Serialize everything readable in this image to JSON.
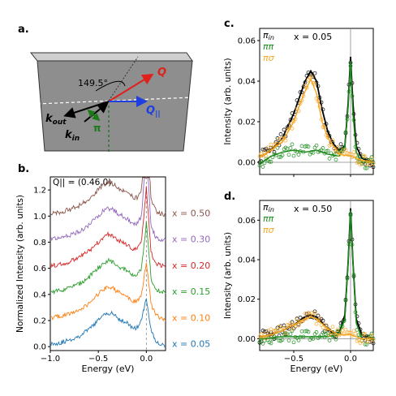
{
  "panels": {
    "a": {
      "label": "a.",
      "angle": "149.5°",
      "vec_Q": "Q",
      "vec_Qpar": "Q",
      "vec_Qpar_sub": "||",
      "vec_kout": "k",
      "vec_kout_sub": "out",
      "vec_kin": "k",
      "vec_kin_sub": "in",
      "pol": "π",
      "colors": {
        "slab_top": "#cfcfcf",
        "slab_face": "#8e8e8e",
        "Q": "#e0201b",
        "Qpar": "#1f3fe0",
        "k": "#000000",
        "pol": "#1a7a1a"
      }
    },
    "b": {
      "label": "b.",
      "annotation": "Q|| = (0.46,0)"
    },
    "c": {
      "label": "c.",
      "annotation": "x = 0.05"
    },
    "d": {
      "label": "d.",
      "annotation": "x = 0.50"
    },
    "legend": [
      {
        "label": "π_in",
        "main": "π",
        "sub": "in",
        "color": "#000000"
      },
      {
        "label": "ππ",
        "main": "ππ",
        "sub": "",
        "color": "#1a8a1a"
      },
      {
        "label": "πσ",
        "main": "πσ",
        "sub": "",
        "color": "#f5a623"
      }
    ]
  },
  "chart_data": [
    {
      "panel": "b",
      "type": "line",
      "xlabel": "Energy (eV)",
      "ylabel": "Normalized Intensity (arb. units)",
      "xlim": [
        -1.0,
        0.2
      ],
      "ylim": [
        -0.03,
        1.3
      ],
      "xticks": [
        -1.0,
        -0.5,
        0.0
      ],
      "xtick_labels": [
        "−1.0",
        "−0.5",
        "0.0"
      ],
      "yticks": [
        0.0,
        0.2,
        0.4,
        0.6,
        0.8,
        1.0,
        1.2
      ],
      "ytick_labels": [
        "0.0",
        "0.2",
        "0.4",
        "0.6",
        "0.8",
        "1.0",
        "1.2"
      ],
      "series": [
        {
          "name": "x = 0.05",
          "color": "#1f77b4",
          "offset": 0.0,
          "elastic_peak": 0.38
        },
        {
          "name": "x = 0.10",
          "color": "#ff7f0e",
          "offset": 0.2,
          "elastic_peak": 0.45
        },
        {
          "name": "x = 0.15",
          "color": "#2ca02c",
          "offset": 0.4,
          "elastic_peak": 0.55
        },
        {
          "name": "x = 0.20",
          "color": "#d62728",
          "offset": 0.6,
          "elastic_peak": 0.62
        },
        {
          "name": "x = 0.30",
          "color": "#9467bd",
          "offset": 0.8,
          "elastic_peak": 0.72
        },
        {
          "name": "x = 0.50",
          "color": "#8c564b",
          "offset": 1.0,
          "elastic_peak": 0.8
        }
      ],
      "shared_profile": {
        "x": [
          -1.0,
          -0.9,
          -0.8,
          -0.7,
          -0.6,
          -0.5,
          -0.45,
          -0.4,
          -0.35,
          -0.3,
          -0.25,
          -0.2,
          -0.15,
          -0.1,
          -0.05,
          0.0,
          0.05,
          0.1,
          0.15,
          0.2
        ],
        "y": [
          0.02,
          0.03,
          0.05,
          0.08,
          0.13,
          0.2,
          0.24,
          0.26,
          0.25,
          0.22,
          0.2,
          0.18,
          0.15,
          0.14,
          0.2,
          0.36,
          0.12,
          0.04,
          0.02,
          0.01
        ]
      }
    },
    {
      "panel": "c",
      "type": "scatter",
      "ylabel": "Intensity (arb. units)",
      "xlim": [
        -0.8,
        0.2
      ],
      "ylim": [
        -0.006,
        0.066
      ],
      "xticks": [
        -0.5,
        0.0
      ],
      "yticks": [
        0.0,
        0.02,
        0.04,
        0.06
      ],
      "ytick_labels": [
        "0.00",
        "0.02",
        "0.04",
        "0.06"
      ],
      "series": [
        {
          "name": "π_in",
          "x": [
            -0.78,
            -0.7,
            -0.6,
            -0.5,
            -0.45,
            -0.4,
            -0.35,
            -0.3,
            -0.25,
            -0.2,
            -0.15,
            -0.1,
            -0.05,
            -0.02,
            0.0,
            0.02,
            0.05,
            0.1,
            0.15,
            0.2
          ],
          "y": [
            0.003,
            0.006,
            0.012,
            0.024,
            0.032,
            0.04,
            0.045,
            0.04,
            0.026,
            0.015,
            0.009,
            0.006,
            0.008,
            0.03,
            0.052,
            0.03,
            0.008,
            0.002,
            0.001,
            0.0
          ]
        },
        {
          "name": "ππ",
          "x": [
            -0.78,
            -0.7,
            -0.6,
            -0.5,
            -0.4,
            -0.3,
            -0.2,
            -0.1,
            -0.05,
            -0.02,
            0.0,
            0.02,
            0.05,
            0.1,
            0.2
          ],
          "y": [
            0.0,
            0.003,
            0.005,
            0.006,
            0.005,
            0.006,
            0.004,
            0.003,
            0.008,
            0.028,
            0.05,
            0.025,
            0.005,
            0.0,
            0.0
          ]
        },
        {
          "name": "πσ",
          "x": [
            -0.78,
            -0.7,
            -0.6,
            -0.5,
            -0.45,
            -0.4,
            -0.35,
            -0.3,
            -0.25,
            -0.2,
            -0.1,
            0.0,
            0.1,
            0.2
          ],
          "y": [
            0.003,
            0.006,
            0.01,
            0.02,
            0.028,
            0.035,
            0.041,
            0.034,
            0.02,
            0.012,
            0.004,
            0.003,
            0.001,
            0.0
          ]
        }
      ]
    },
    {
      "panel": "d",
      "type": "scatter",
      "xlabel": "Energy (eV)",
      "ylabel": "Intensity (arb. units)",
      "xlim": [
        -0.8,
        0.2
      ],
      "ylim": [
        -0.006,
        0.07
      ],
      "xticks": [
        -0.5,
        0.0
      ],
      "xtick_labels": [
        "−0.5",
        "0.0"
      ],
      "yticks": [
        0.0,
        0.02,
        0.04,
        0.06
      ],
      "ytick_labels": [
        "0.00",
        "0.02",
        "0.04",
        "0.06"
      ],
      "series": [
        {
          "name": "π_in",
          "x": [
            -0.78,
            -0.7,
            -0.6,
            -0.5,
            -0.45,
            -0.4,
            -0.35,
            -0.3,
            -0.25,
            -0.2,
            -0.15,
            -0.1,
            -0.05,
            -0.02,
            0.0,
            0.02,
            0.05,
            0.1,
            0.15,
            0.2
          ],
          "y": [
            0.001,
            0.002,
            0.004,
            0.007,
            0.009,
            0.011,
            0.012,
            0.011,
            0.008,
            0.005,
            0.003,
            0.003,
            0.012,
            0.04,
            0.066,
            0.04,
            0.01,
            0.002,
            0.001,
            0.0
          ]
        },
        {
          "name": "ππ",
          "x": [
            -0.78,
            -0.6,
            -0.4,
            -0.2,
            -0.1,
            -0.05,
            -0.02,
            0.0,
            0.02,
            0.05,
            0.1,
            0.2
          ],
          "y": [
            0.0,
            0.001,
            0.001,
            0.001,
            0.002,
            0.01,
            0.04,
            0.065,
            0.04,
            0.008,
            0.0,
            0.0
          ]
        },
        {
          "name": "πσ",
          "x": [
            -0.78,
            -0.7,
            -0.6,
            -0.5,
            -0.4,
            -0.35,
            -0.3,
            -0.2,
            -0.1,
            0.0,
            0.1,
            0.2
          ],
          "y": [
            0.001,
            0.002,
            0.004,
            0.007,
            0.01,
            0.011,
            0.01,
            0.005,
            0.002,
            0.002,
            0.0,
            0.0
          ]
        }
      ]
    }
  ]
}
